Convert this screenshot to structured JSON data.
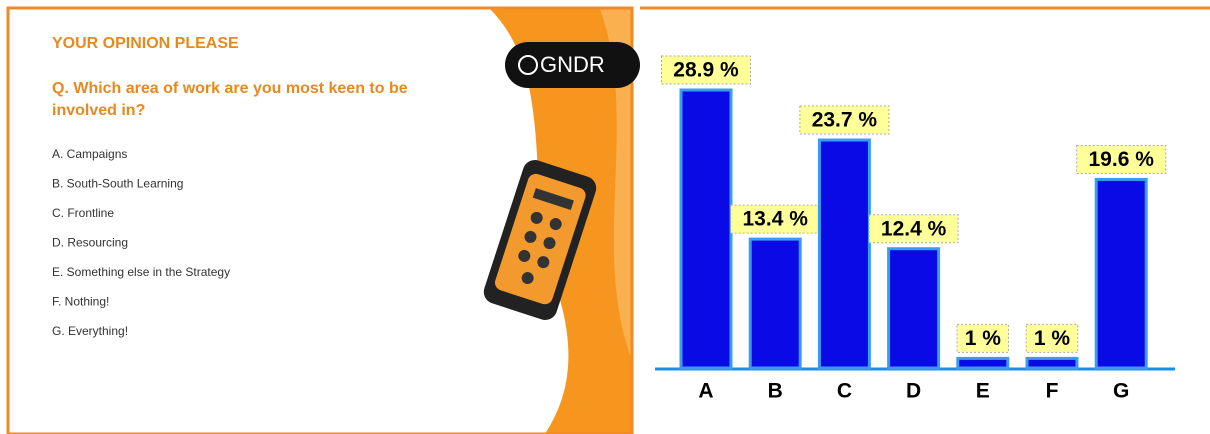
{
  "slide": {
    "heading": "YOUR OPINION PLEASE",
    "question": [
      "Q.  Which area of work are you most keen to be",
      "involved in?"
    ],
    "options": [
      "A.  Campaigns",
      "B.  South-South Learning",
      "C.  Frontline",
      "D.  Resourcing",
      "E.  Something else in the Strategy",
      "F.  Nothing!",
      "G.  Everything!"
    ],
    "logo": "GNDR"
  },
  "chart_data": {
    "type": "bar",
    "categories": [
      "A",
      "B",
      "C",
      "D",
      "E",
      "F",
      "G"
    ],
    "values": [
      28.9,
      13.4,
      23.7,
      12.4,
      1,
      1,
      19.6
    ],
    "value_labels": [
      "28.9 %",
      "13.4 %",
      "23.7 %",
      "12.4 %",
      "1 %",
      "1 %",
      "19.6 %"
    ],
    "color": "#0a0ae6"
  }
}
